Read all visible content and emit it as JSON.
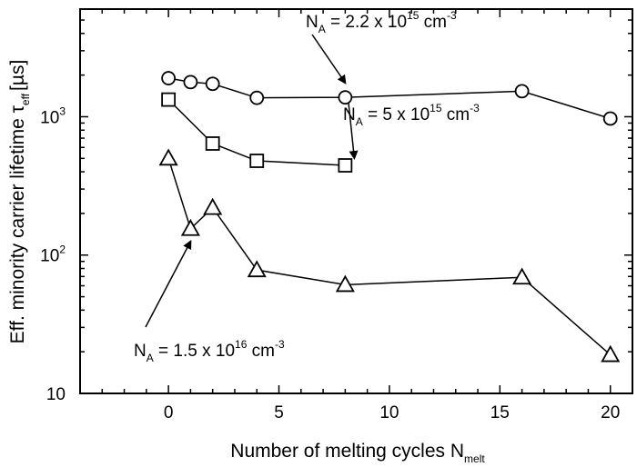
{
  "chart_data": {
    "type": "scatter",
    "xlabel": "Number of melting cycles N",
    "xlabel_sub": "melt",
    "ylabel": "Eff. minority carrier lifetime τ",
    "ylabel_sub": "eff",
    "ylabel_unit": "[µs]",
    "xlim": [
      -4,
      21
    ],
    "ylim": [
      10,
      6000
    ],
    "y_scale": "log",
    "x_ticks": [
      0,
      5,
      10,
      15,
      20
    ],
    "x_tick_labels": [
      "0",
      "5",
      "10",
      "15",
      "20"
    ],
    "y_ticks": [
      10,
      100,
      1000
    ],
    "y_tick_labels": [
      {
        "base": "10",
        "exp": ""
      },
      {
        "base": "10",
        "exp": "2"
      },
      {
        "base": "10",
        "exp": "3"
      }
    ],
    "grid": false,
    "legend": "none",
    "series": [
      {
        "marker": "circle",
        "x": [
          0,
          1,
          2,
          4,
          8,
          16,
          20
        ],
        "y": [
          1900,
          1780,
          1730,
          1370,
          1380,
          1530,
          970
        ]
      },
      {
        "marker": "square",
        "x": [
          0,
          2,
          4,
          8
        ],
        "y": [
          1330,
          640,
          480,
          445
        ]
      },
      {
        "marker": "triangle",
        "x": [
          0,
          1,
          2,
          4,
          8,
          16,
          20
        ],
        "y": [
          500,
          155,
          220,
          78,
          61,
          69,
          19
        ]
      }
    ],
    "annotations": [
      {
        "text_main": "N",
        "text_sub": "A",
        "text_rest": " = 2.2 x 10",
        "text_sup": "15",
        "text_unit": " cm",
        "text_unit_sup": "-3",
        "target_x": 8,
        "target_y": 1380
      },
      {
        "text_main": "N",
        "text_sub": "A",
        "text_rest": " = 5 x 10",
        "text_sup": "15",
        "text_unit": " cm",
        "text_unit_sup": "-3",
        "target_x": 8,
        "target_y": 445
      },
      {
        "text_main": "N",
        "text_sub": "A",
        "text_rest": " = 1.5 x 10",
        "text_sup": "16",
        "text_unit": " cm",
        "text_unit_sup": "-3",
        "target_x": 1,
        "target_y": 155
      }
    ]
  }
}
